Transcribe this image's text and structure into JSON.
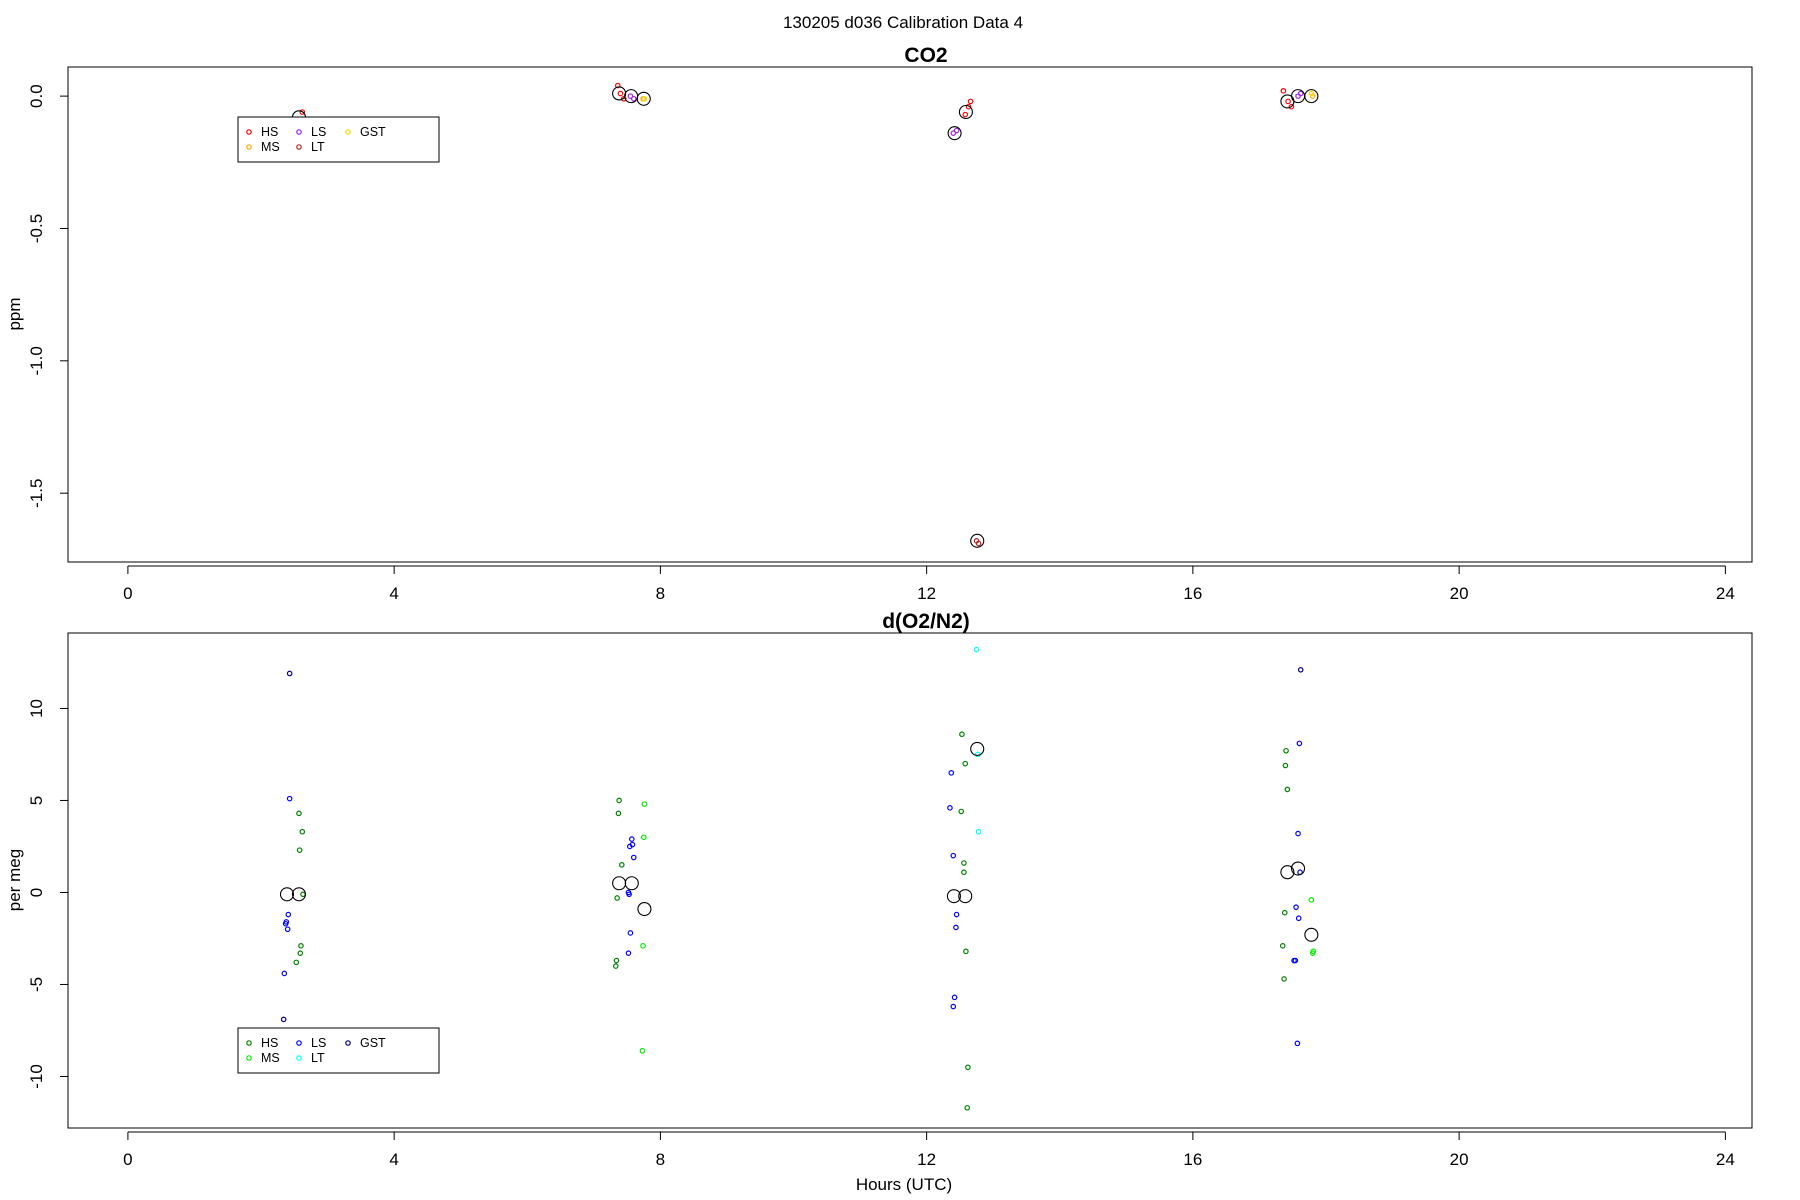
{
  "figure": {
    "main_title": "130205   d036   Calibration Data 4"
  },
  "chart_data": [
    {
      "type": "scatter",
      "title": "CO2",
      "xlabel": "",
      "ylabel": "ppm",
      "xlim": [
        -0.9,
        24.4
      ],
      "ylim": [
        -1.76,
        0.11
      ],
      "x_ticks": [
        "0",
        "4",
        "8",
        "12",
        "16",
        "20",
        "24"
      ],
      "y_ticks": [
        "0.0",
        "-0.5",
        "-1.0",
        "-1.5"
      ],
      "legend": {
        "placement": "top-left",
        "entries": [
          {
            "name": "HS",
            "color": "#ff0000"
          },
          {
            "name": "MS",
            "color": "#ffa500"
          },
          {
            "name": "LS",
            "color": "#a020f0"
          },
          {
            "name": "LT",
            "color": "#b22222"
          },
          {
            "name": "GST",
            "color": "#ffd700"
          }
        ]
      },
      "series": [
        {
          "name": "HS",
          "color": "#ff0000",
          "points": [
            [
              2.62,
              -0.06
            ],
            [
              7.36,
              0.04
            ],
            [
              7.4,
              0.01
            ],
            [
              7.45,
              -0.01
            ],
            [
              12.58,
              -0.07
            ],
            [
              12.63,
              -0.04
            ],
            [
              12.66,
              -0.02
            ],
            [
              17.36,
              0.02
            ],
            [
              17.43,
              -0.02
            ],
            [
              17.48,
              -0.04
            ]
          ]
        },
        {
          "name": "MS",
          "color": "#ffa500",
          "points": [
            [
              7.74,
              -0.01
            ],
            [
              17.8,
              0.0
            ]
          ]
        },
        {
          "name": "LS",
          "color": "#a020f0",
          "points": [
            [
              7.55,
              0.0
            ],
            [
              7.6,
              -0.01
            ],
            [
              12.4,
              -0.14
            ],
            [
              12.45,
              -0.13
            ],
            [
              17.58,
              0.0
            ],
            [
              17.62,
              0.01
            ]
          ]
        },
        {
          "name": "LT",
          "color": "#b22222",
          "points": [
            [
              12.75,
              -1.68
            ],
            [
              12.78,
              -1.69
            ]
          ]
        },
        {
          "name": "GST",
          "color": "#ffd700",
          "points": [
            [
              7.76,
              -0.01
            ],
            [
              17.78,
              0.01
            ]
          ]
        },
        {
          "name": "",
          "color": "#000000",
          "role": "mean",
          "points": [
            [
              2.57,
              -0.08
            ],
            [
              7.38,
              0.01
            ],
            [
              7.56,
              0.0
            ],
            [
              7.75,
              -0.01
            ],
            [
              12.42,
              -0.14
            ],
            [
              12.59,
              -0.06
            ],
            [
              12.76,
              -1.68
            ],
            [
              17.42,
              -0.02
            ],
            [
              17.58,
              0.0
            ],
            [
              17.78,
              0.0
            ]
          ]
        }
      ]
    },
    {
      "type": "scatter",
      "title": "d(O2/N2)",
      "xlabel": "Hours (UTC)",
      "ylabel": "per meg",
      "xlim": [
        -0.9,
        24.4
      ],
      "ylim": [
        -12.8,
        14.1
      ],
      "x_ticks": [
        "0",
        "4",
        "8",
        "12",
        "16",
        "20",
        "24"
      ],
      "y_ticks": [
        "10",
        "5",
        "0",
        "-5",
        "-10"
      ],
      "legend": {
        "placement": "bottom-left",
        "entries": [
          {
            "name": "HS",
            "color": "#008000"
          },
          {
            "name": "MS",
            "color": "#00ee00"
          },
          {
            "name": "LS",
            "color": "#0000ff"
          },
          {
            "name": "LT",
            "color": "#00ffff"
          },
          {
            "name": "GST",
            "color": "#00008b"
          }
        ]
      },
      "series": [
        {
          "name": "HS",
          "color": "#008000",
          "points": [
            [
              2.57,
              4.3
            ],
            [
              2.62,
              3.3
            ],
            [
              2.58,
              2.3
            ],
            [
              2.63,
              -0.1
            ],
            [
              2.6,
              -2.9
            ],
            [
              2.59,
              -3.3
            ],
            [
              2.53,
              -3.8
            ],
            [
              7.38,
              5.0
            ],
            [
              7.37,
              4.3
            ],
            [
              7.42,
              1.5
            ],
            [
              7.35,
              -0.3
            ],
            [
              7.34,
              -3.7
            ],
            [
              7.33,
              -4.0
            ],
            [
              12.53,
              8.6
            ],
            [
              12.58,
              7.0
            ],
            [
              12.52,
              4.4
            ],
            [
              12.56,
              1.6
            ],
            [
              12.56,
              1.1
            ],
            [
              12.59,
              -3.2
            ],
            [
              12.62,
              -9.5
            ],
            [
              12.61,
              -11.7
            ],
            [
              17.4,
              7.7
            ],
            [
              17.39,
              6.9
            ],
            [
              17.42,
              5.6
            ],
            [
              17.38,
              -1.1
            ],
            [
              17.35,
              -2.9
            ],
            [
              17.37,
              -4.7
            ]
          ]
        },
        {
          "name": "MS",
          "color": "#00ee00",
          "points": [
            [
              7.76,
              4.8
            ],
            [
              7.75,
              3.0
            ],
            [
              7.74,
              -2.9
            ],
            [
              7.73,
              -8.6
            ],
            [
              17.78,
              -0.4
            ],
            [
              17.81,
              -3.2
            ],
            [
              17.8,
              -3.3
            ]
          ]
        },
        {
          "name": "LS",
          "color": "#0000ff",
          "points": [
            [
              2.43,
              5.1
            ],
            [
              2.41,
              -1.2
            ],
            [
              2.38,
              -1.6
            ],
            [
              2.37,
              -1.7
            ],
            [
              2.4,
              -2.0
            ],
            [
              2.35,
              -4.4
            ],
            [
              7.57,
              2.9
            ],
            [
              7.54,
              2.5
            ],
            [
              7.58,
              2.6
            ],
            [
              7.6,
              1.9
            ],
            [
              7.52,
              0.0
            ],
            [
              7.53,
              -0.1
            ],
            [
              7.55,
              -2.2
            ],
            [
              7.52,
              -3.3
            ],
            [
              12.37,
              6.5
            ],
            [
              12.35,
              4.6
            ],
            [
              12.4,
              2.0
            ],
            [
              12.45,
              -1.2
            ],
            [
              12.44,
              -1.9
            ],
            [
              12.42,
              -5.7
            ],
            [
              12.4,
              -6.2
            ],
            [
              17.6,
              8.1
            ],
            [
              17.58,
              3.2
            ],
            [
              17.61,
              1.1
            ],
            [
              17.55,
              -0.8
            ],
            [
              17.59,
              -1.4
            ],
            [
              17.52,
              -3.7
            ],
            [
              17.54,
              -3.7
            ],
            [
              17.57,
              -8.2
            ]
          ]
        },
        {
          "name": "LT",
          "color": "#00ffff",
          "points": [
            [
              12.75,
              13.2
            ],
            [
              12.77,
              7.5
            ],
            [
              12.78,
              3.3
            ]
          ]
        },
        {
          "name": "GST",
          "color": "#00008b",
          "points": [
            [
              2.43,
              11.9
            ],
            [
              2.34,
              -6.9
            ],
            [
              17.62,
              12.1
            ]
          ]
        },
        {
          "name": "",
          "color": "#000000",
          "role": "mean",
          "points": [
            [
              2.39,
              -0.1
            ],
            [
              2.57,
              -0.1
            ],
            [
              7.38,
              0.5
            ],
            [
              7.57,
              0.5
            ],
            [
              7.76,
              -0.9
            ],
            [
              12.41,
              -0.2
            ],
            [
              12.58,
              -0.2
            ],
            [
              12.76,
              7.8
            ],
            [
              17.42,
              1.1
            ],
            [
              17.58,
              1.3
            ],
            [
              17.78,
              -2.3
            ]
          ]
        }
      ]
    }
  ]
}
